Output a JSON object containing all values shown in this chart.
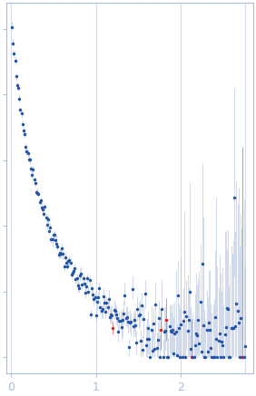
{
  "background_color": "#ffffff",
  "axis_color": "#aabbdd",
  "dot_color": "#2255aa",
  "errorbar_color": "#aabbdd",
  "outlier_color": "#dd2222",
  "dot_size": 2.5,
  "seed": 42,
  "n_points": 220,
  "q_max": 2.75,
  "figsize": [
    2.82,
    4.37
  ],
  "dpi": 100,
  "xticks": [
    0,
    1,
    2
  ],
  "xlim": [
    -0.05,
    2.85
  ],
  "n_outliers": 5
}
